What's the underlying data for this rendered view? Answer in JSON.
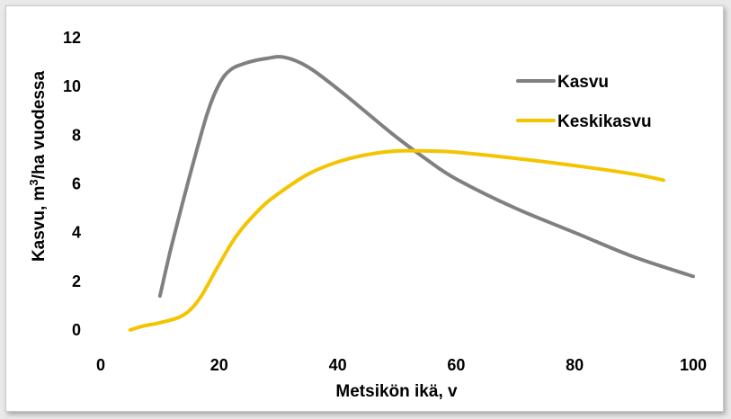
{
  "chart_data": {
    "type": "line",
    "title": "",
    "xlabel": "Metsikön ikä, v",
    "ylabel_prefix": "Kasvu, m",
    "ylabel_sup": "3",
    "ylabel_suffix": "/ha vuodessa",
    "xlim": [
      0,
      100
    ],
    "ylim": [
      0,
      12
    ],
    "x_ticks": [
      0,
      20,
      40,
      60,
      80,
      100
    ],
    "y_ticks": [
      0,
      2,
      4,
      6,
      8,
      10,
      12
    ],
    "grid": false,
    "legend_position": "right",
    "series": [
      {
        "name": "Kasvu",
        "color": "#808080",
        "x": [
          10,
          12,
          15,
          18,
          20,
          22,
          25,
          28,
          31,
          35,
          40,
          45,
          50,
          55,
          60,
          70,
          80,
          90,
          100
        ],
        "y": [
          1.4,
          3.5,
          6.3,
          8.9,
          10.1,
          10.7,
          11.0,
          11.15,
          11.2,
          10.8,
          9.9,
          8.9,
          7.9,
          7.0,
          6.2,
          5.0,
          4.0,
          3.0,
          2.2
        ]
      },
      {
        "name": "Keskikasvu",
        "color": "#f5c400",
        "x": [
          5,
          7,
          10,
          13,
          15,
          17,
          20,
          23,
          27,
          30,
          35,
          40,
          45,
          50,
          55,
          60,
          70,
          80,
          90,
          95
        ],
        "y": [
          0.0,
          0.15,
          0.3,
          0.5,
          0.8,
          1.4,
          2.7,
          3.9,
          5.0,
          5.6,
          6.4,
          6.9,
          7.2,
          7.35,
          7.35,
          7.3,
          7.05,
          6.75,
          6.4,
          6.15
        ]
      }
    ]
  }
}
